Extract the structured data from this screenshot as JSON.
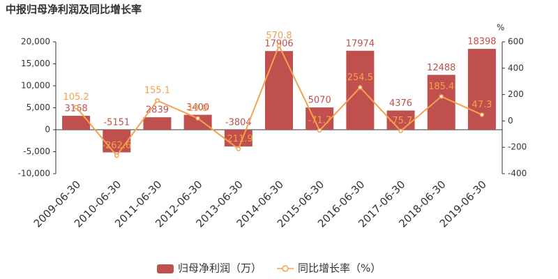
{
  "chart_data": {
    "type": "bar",
    "title": "中报归母净利润及同比增长率",
    "categories": [
      "2009-06-30",
      "2010-06-30",
      "2011-06-30",
      "2012-06-30",
      "2013-06-30",
      "2014-06-30",
      "2015-06-30",
      "2016-06-30",
      "2017-06-30",
      "2018-06-30",
      "2019-06-30"
    ],
    "series": [
      {
        "name": "归母净利润（万）",
        "type": "bar",
        "color": "#c0504d",
        "label_color": "#c0504d",
        "values": [
          3168,
          -5151,
          2839,
          3400,
          -3804,
          17906,
          5070,
          17974,
          4376,
          12488,
          18398
        ]
      },
      {
        "name": "同比增长率（%）",
        "type": "line",
        "axis": "y2",
        "color": "#f5a04e",
        "label_color": "#f5a04e",
        "values": [
          105.2,
          -262.6,
          155.1,
          19.8,
          -211.9,
          570.8,
          -71.7,
          254.5,
          -75.7,
          185.4,
          47.3
        ]
      }
    ],
    "ylim": [
      -10000,
      20000
    ],
    "yticks": [
      {
        "value": -10000,
        "label": "-10,000"
      },
      {
        "value": -5000,
        "label": "-5,000"
      },
      0,
      {
        "value": 5000,
        "label": "5,000"
      },
      {
        "value": 10000,
        "label": "10,000"
      },
      {
        "value": 15000,
        "label": "15,000"
      },
      {
        "value": 20000,
        "label": "20,000"
      }
    ],
    "y2lim": [
      -400,
      600
    ],
    "y2ticks": [
      -400,
      -200,
      0,
      200,
      400,
      600
    ],
    "y2_label": "%",
    "grid": false,
    "legend": "bottom"
  }
}
